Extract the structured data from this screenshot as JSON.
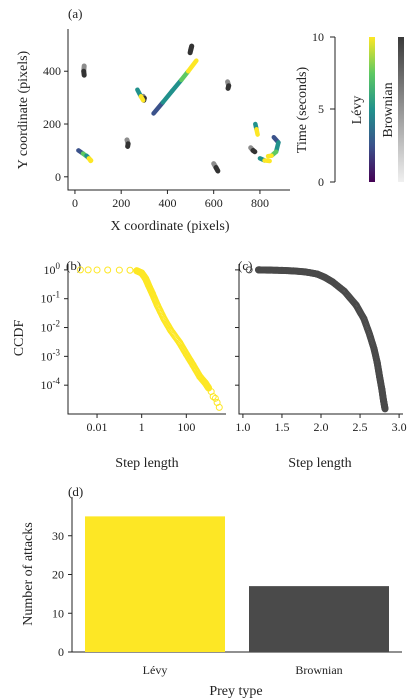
{
  "colors": {
    "levy": "#fde725",
    "brownian": "#4a4a4a",
    "viridis": [
      "#440154",
      "#3b528b",
      "#21918c",
      "#5ec962",
      "#fde725"
    ]
  },
  "panels": {
    "a": {
      "label": "(a)",
      "xlabel": "X coordinate (pixels)",
      "ylabel": "Y coordinate (pixels)",
      "xticks": [
        "0",
        "200",
        "400",
        "600",
        "800"
      ],
      "yticks": [
        "0",
        "200",
        "400"
      ],
      "colorbar": {
        "label": "Time (seconds)",
        "ticks": [
          "0",
          "5",
          "10"
        ],
        "levy_label": "Lévy",
        "brownian_label": "Brownian"
      }
    },
    "b": {
      "label": "(b)",
      "xlabel": "Step length",
      "ylabel": "CCDF",
      "xticks": [
        "0.01",
        "1",
        "100"
      ],
      "yticks": [
        "10^0",
        "10^-1",
        "10^-2",
        "10^-3",
        "10^-4"
      ]
    },
    "c": {
      "label": "(c)",
      "xlabel": "Step length",
      "xticks": [
        "1.0",
        "1.5",
        "2.0",
        "2.5",
        "3.0"
      ]
    },
    "d": {
      "label": "(d)",
      "xlabel": "Prey type",
      "ylabel": "Number of attacks",
      "yticks": [
        "0",
        "10",
        "20",
        "30"
      ]
    }
  },
  "chart_data": [
    {
      "panel": "a",
      "type": "line",
      "xlim": [
        -30,
        930
      ],
      "ylim": [
        -50,
        560
      ],
      "levy_tracks": [
        [
          [
            340,
            240
          ],
          [
            380,
            282
          ],
          [
            420,
            325
          ],
          [
            460,
            367
          ],
          [
            490,
            400
          ],
          [
            525,
            440
          ]
        ],
        [
          [
            15,
            100
          ],
          [
            35,
            88
          ],
          [
            55,
            75
          ],
          [
            70,
            62
          ]
        ],
        [
          [
            50,
            80
          ],
          [
            60,
            70
          ],
          [
            68,
            60
          ]
        ],
        [
          [
            270,
            330
          ],
          [
            285,
            305
          ],
          [
            295,
            290
          ]
        ],
        [
          [
            860,
            150
          ],
          [
            880,
            130
          ],
          [
            870,
            95
          ],
          [
            850,
            80
          ],
          [
            835,
            78
          ]
        ],
        [
          [
            780,
            200
          ],
          [
            785,
            180
          ],
          [
            790,
            160
          ]
        ],
        [
          [
            800,
            70
          ],
          [
            820,
            62
          ],
          [
            842,
            60
          ]
        ]
      ],
      "brownian_tracks": [
        [
          [
            40,
            420
          ],
          [
            38,
            400
          ],
          [
            40,
            385
          ]
        ],
        [
          [
            500,
            480
          ],
          [
            505,
            495
          ],
          [
            498,
            470
          ]
        ],
        [
          [
            660,
            360
          ],
          [
            665,
            345
          ],
          [
            662,
            335
          ]
        ],
        [
          [
            225,
            140
          ],
          [
            230,
            125
          ],
          [
            228,
            115
          ]
        ],
        [
          [
            600,
            50
          ],
          [
            610,
            35
          ],
          [
            618,
            22
          ]
        ],
        [
          [
            760,
            110
          ],
          [
            770,
            100
          ],
          [
            778,
            95
          ]
        ],
        [
          [
            295,
            305
          ],
          [
            300,
            298
          ],
          [
            298,
            290
          ]
        ]
      ]
    },
    {
      "panel": "b",
      "type": "scatter",
      "xscale": "log",
      "yscale": "log",
      "xlim": [
        0.0005,
        6000
      ],
      "ylim": [
        1e-05,
        1.6
      ],
      "x": [
        0.0018,
        0.004,
        0.01,
        0.03,
        0.1,
        0.3,
        0.6,
        1.0,
        1.5,
        2.0,
        3.0,
        5.0,
        10,
        20,
        50,
        100,
        200,
        400,
        700,
        1000,
        1300,
        1600,
        2000,
        2400,
        3000
      ],
      "y": [
        1,
        1,
        0.995,
        0.99,
        0.985,
        0.97,
        0.93,
        0.78,
        0.5,
        0.3,
        0.15,
        0.06,
        0.02,
        0.008,
        0.003,
        0.0012,
        0.0005,
        0.0002,
        0.00012,
        8e-05,
        6e-05,
        4e-05,
        3.5e-05,
        2.5e-05,
        1.7e-05
      ]
    },
    {
      "panel": "c",
      "type": "scatter",
      "xlim": [
        0.95,
        3.05
      ],
      "ylim": [
        1e-05,
        1.6
      ],
      "yscale": "log",
      "x": [
        1.08,
        1.2,
        1.25,
        1.35,
        1.5,
        1.65,
        1.8,
        1.95,
        2.05,
        2.15,
        2.3,
        2.45,
        2.55,
        2.62,
        2.68,
        2.72,
        2.75,
        2.78,
        2.8,
        2.82
      ],
      "y": [
        1,
        1,
        0.99,
        0.98,
        0.96,
        0.92,
        0.85,
        0.72,
        0.55,
        0.38,
        0.18,
        0.06,
        0.02,
        0.006,
        0.0018,
        0.0006,
        0.0002,
        7e-05,
        3e-05,
        1.5e-05
      ]
    },
    {
      "panel": "d",
      "type": "bar",
      "categories": [
        "Lévy",
        "Brownian"
      ],
      "values": [
        35,
        17
      ],
      "ylim": [
        0,
        40
      ]
    }
  ]
}
